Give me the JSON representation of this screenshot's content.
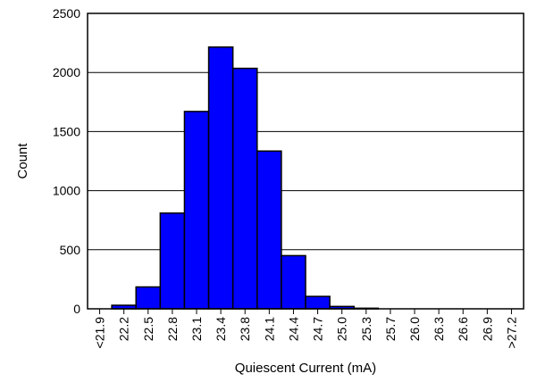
{
  "chart_data": {
    "type": "bar",
    "categories": [
      "<21.9",
      "22.2",
      "22.5",
      "22.8",
      "23.1",
      "23.4",
      "23.8",
      "24.1",
      "24.4",
      "24.7",
      "25.0",
      "25.3",
      "25.7",
      "26.0",
      "26.3",
      "26.6",
      "26.9",
      ">27.2"
    ],
    "values": [
      0,
      30,
      185,
      810,
      1670,
      2215,
      2035,
      1335,
      450,
      105,
      20,
      5,
      0,
      0,
      0,
      0,
      0,
      0
    ],
    "xlabel": "Quiescent Current (mA)",
    "ylabel": "Count",
    "ylim": [
      0,
      2500
    ],
    "yticks": [
      0,
      500,
      1000,
      1500,
      2000,
      2500
    ],
    "grid": "horizontal",
    "colors": {
      "bar_fill": "#0000ff",
      "bar_stroke": "#000000",
      "grid": "#000000",
      "frame": "#000000",
      "text": "#000000"
    }
  }
}
